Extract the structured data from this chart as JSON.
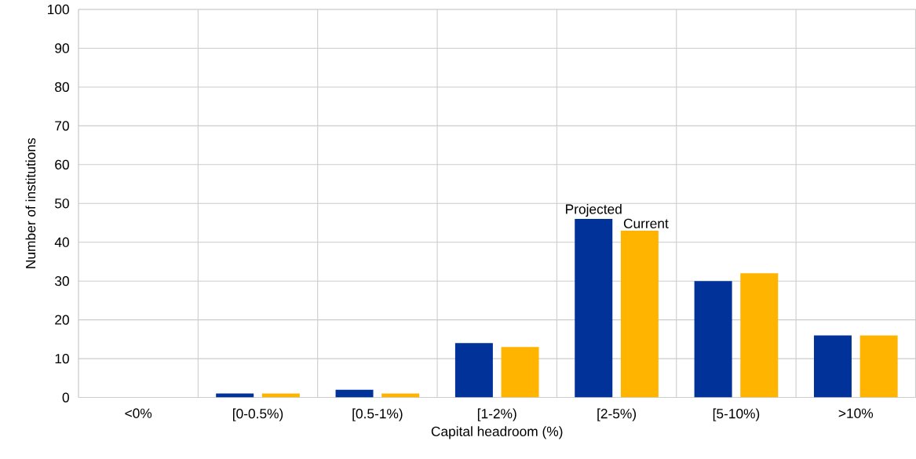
{
  "chart_data": {
    "type": "bar",
    "xlabel": "Capital headroom (%)",
    "ylabel": "Number of institutions",
    "categories": [
      "<0%",
      "[0-0.5%)",
      "[0.5-1%)",
      "[1-2%)",
      "[2-5%)",
      "[5-10%)",
      ">10%"
    ],
    "series": [
      {
        "name": "Projected",
        "color": "#003299",
        "values": [
          0,
          1,
          2,
          14,
          46,
          30,
          16
        ]
      },
      {
        "name": "Current",
        "color": "#ffb400",
        "values": [
          0,
          1,
          1,
          13,
          43,
          32,
          16
        ]
      }
    ],
    "ylim": [
      0,
      100
    ],
    "yticks": [
      0,
      10,
      20,
      30,
      40,
      50,
      60,
      70,
      80,
      90,
      100
    ],
    "grid": true
  }
}
